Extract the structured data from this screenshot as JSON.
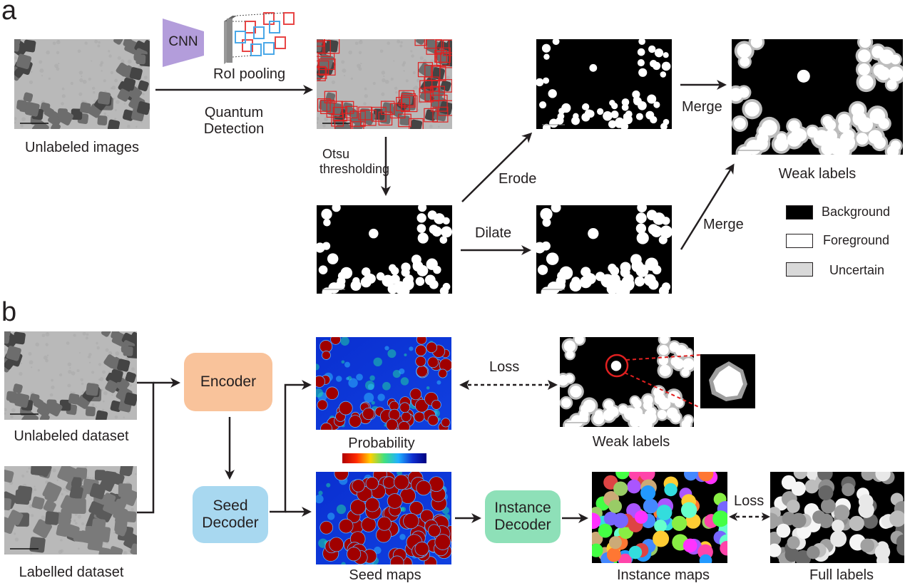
{
  "panel_a": {
    "letter": "a",
    "unlabeled_images": "Unlabeled images",
    "cnn": "CNN",
    "roi_pooling": "RoI pooling",
    "quantum_detection_line1": "Quantum",
    "quantum_detection_line2": "Detection",
    "otsu_line1": "Otsu",
    "otsu_line2": "thresholding",
    "erode": "Erode",
    "dilate": "Dilate",
    "merge_top": "Merge",
    "merge_bottom": "Merge",
    "weak_labels": "Weak labels",
    "legend": {
      "background": "Background",
      "foreground": "Foreground",
      "uncertain": "Uncertain"
    }
  },
  "panel_b": {
    "letter": "b",
    "unlabeled_dataset": "Unlabeled dataset",
    "labelled_dataset": "Labelled dataset",
    "encoder": "Encoder",
    "seed_decoder_line1": "Seed",
    "seed_decoder_line2": "Decoder",
    "probability": "Probability",
    "loss_top": "Loss",
    "weak_labels": "Weak labels",
    "seed_maps": "Seed maps",
    "instance_decoder_line1": "Instance",
    "instance_decoder_line2": "Decoder",
    "instance_maps": "Instance maps",
    "loss_bottom": "Loss",
    "full_labels": "Full labels"
  },
  "colors": {
    "encoder": "#f9c39b",
    "seed_decoder": "#a8d8f0",
    "instance_decoder": "#8ee0b8",
    "cnn": "#b39ddb",
    "detection_box": "#e02020",
    "uncertain": "#d9d9d9"
  }
}
